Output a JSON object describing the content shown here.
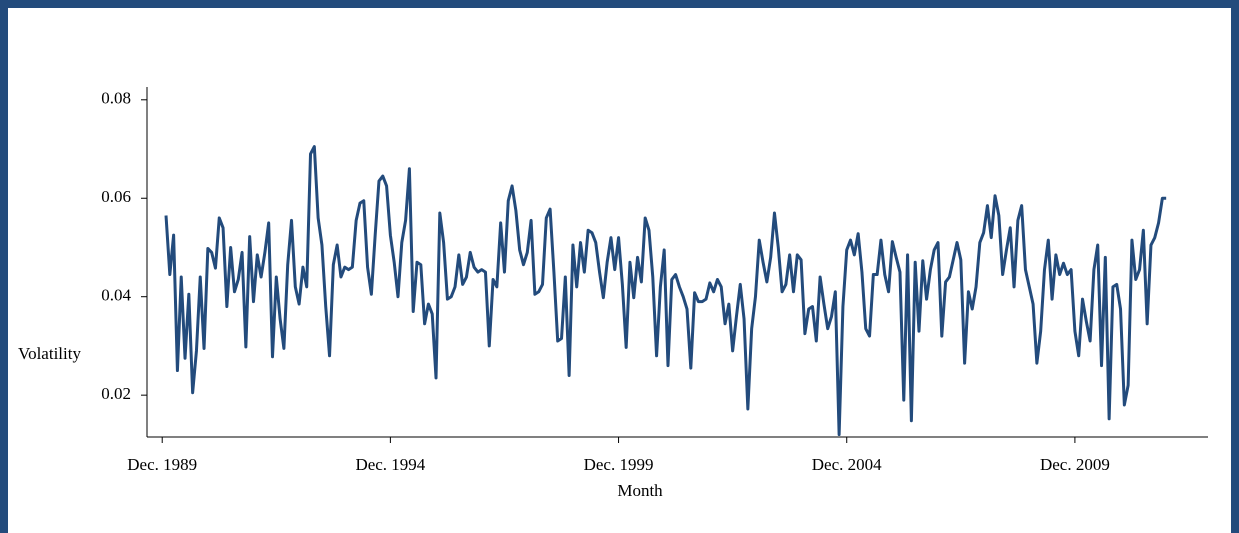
{
  "chart_data": {
    "type": "line",
    "x_label": "Month",
    "y_label": "Volatility",
    "xlim": [
      "1989-08",
      "2012-11"
    ],
    "ylim": [
      0.0115,
      0.0826
    ],
    "xticks": [
      {
        "value": "1989-12",
        "label": "Dec. 1989"
      },
      {
        "value": "1994-12",
        "label": "Dec. 1994"
      },
      {
        "value": "1999-12",
        "label": "Dec. 1999"
      },
      {
        "value": "2004-12",
        "label": "Dec. 2004"
      },
      {
        "value": "2009-12",
        "label": "Dec. 2009"
      }
    ],
    "yticks": [
      0.02,
      0.04,
      0.06,
      0.08
    ],
    "grid": false,
    "x": [
      "1990-01",
      "1990-02",
      "1990-03",
      "1990-04",
      "1990-05",
      "1990-06",
      "1990-07",
      "1990-08",
      "1990-09",
      "1990-10",
      "1990-11",
      "1990-12",
      "1991-01",
      "1991-02",
      "1991-03",
      "1991-04",
      "1991-05",
      "1991-06",
      "1991-07",
      "1991-08",
      "1991-09",
      "1991-10",
      "1991-11",
      "1991-12",
      "1992-01",
      "1992-02",
      "1992-03",
      "1992-04",
      "1992-05",
      "1992-06",
      "1992-07",
      "1992-08",
      "1992-09",
      "1992-10",
      "1992-11",
      "1992-12",
      "1993-01",
      "1993-02",
      "1993-03",
      "1993-04",
      "1993-05",
      "1993-06",
      "1993-07",
      "1993-08",
      "1993-09",
      "1993-10",
      "1993-11",
      "1993-12",
      "1994-01",
      "1994-02",
      "1994-03",
      "1994-04",
      "1994-05",
      "1994-06",
      "1994-07",
      "1994-08",
      "1994-09",
      "1994-10",
      "1994-11",
      "1994-12",
      "1995-01",
      "1995-02",
      "1995-03",
      "1995-04",
      "1995-05",
      "1995-06",
      "1995-07",
      "1995-08",
      "1995-09",
      "1995-10",
      "1995-11",
      "1995-12",
      "1996-01",
      "1996-02",
      "1996-03",
      "1996-04",
      "1996-05",
      "1996-06",
      "1996-07",
      "1996-08",
      "1996-09",
      "1996-10",
      "1996-11",
      "1996-12",
      "1997-01",
      "1997-02",
      "1997-03",
      "1997-04",
      "1997-05",
      "1997-06",
      "1997-07",
      "1997-08",
      "1997-09",
      "1997-10",
      "1997-11",
      "1997-12",
      "1998-01",
      "1998-02",
      "1998-03",
      "1998-04",
      "1998-05",
      "1998-06",
      "1998-07",
      "1998-08",
      "1998-09",
      "1998-10",
      "1998-11",
      "1998-12",
      "1999-01",
      "1999-02",
      "1999-03",
      "1999-04",
      "1999-05",
      "1999-06",
      "1999-07",
      "1999-08",
      "1999-09",
      "1999-10",
      "1999-11",
      "1999-12",
      "2000-01",
      "2000-02",
      "2000-03",
      "2000-04",
      "2000-05",
      "2000-06",
      "2000-07",
      "2000-08",
      "2000-09",
      "2000-10",
      "2000-11",
      "2000-12",
      "2001-01",
      "2001-02",
      "2001-03",
      "2001-04",
      "2001-05",
      "2001-06",
      "2001-07",
      "2001-08",
      "2001-09",
      "2001-10",
      "2001-11",
      "2001-12",
      "2002-01",
      "2002-02",
      "2002-03",
      "2002-04",
      "2002-05",
      "2002-06",
      "2002-07",
      "2002-08",
      "2002-09",
      "2002-10",
      "2002-11",
      "2002-12",
      "2003-01",
      "2003-02",
      "2003-03",
      "2003-04",
      "2003-05",
      "2003-06",
      "2003-07",
      "2003-08",
      "2003-09",
      "2003-10",
      "2003-11",
      "2003-12",
      "2004-01",
      "2004-02",
      "2004-03",
      "2004-04",
      "2004-05",
      "2004-06",
      "2004-07",
      "2004-08",
      "2004-09",
      "2004-10",
      "2004-11",
      "2004-12",
      "2005-01",
      "2005-02",
      "2005-03",
      "2005-04",
      "2005-05",
      "2005-06",
      "2005-07",
      "2005-08",
      "2005-09",
      "2005-10",
      "2005-11",
      "2005-12",
      "2006-01",
      "2006-02",
      "2006-03",
      "2006-04",
      "2006-05",
      "2006-06",
      "2006-07",
      "2006-08",
      "2006-09",
      "2006-10",
      "2006-11",
      "2006-12",
      "2007-01",
      "2007-02",
      "2007-03",
      "2007-04",
      "2007-05",
      "2007-06",
      "2007-07",
      "2007-08",
      "2007-09",
      "2007-10",
      "2007-11",
      "2007-12",
      "2008-01",
      "2008-02",
      "2008-03",
      "2008-04",
      "2008-05",
      "2008-06",
      "2008-07",
      "2008-08",
      "2008-09",
      "2008-10",
      "2008-11",
      "2008-12",
      "2009-01",
      "2009-02",
      "2009-03",
      "2009-04",
      "2009-05",
      "2009-06",
      "2009-07",
      "2009-08",
      "2009-09",
      "2009-10",
      "2009-11",
      "2009-12",
      "2010-01",
      "2010-02",
      "2010-03",
      "2010-04",
      "2010-05",
      "2010-06",
      "2010-07",
      "2010-08",
      "2010-09",
      "2010-10",
      "2010-11",
      "2010-12",
      "2011-01",
      "2011-02",
      "2011-03",
      "2011-04",
      "2011-05",
      "2011-06",
      "2011-07",
      "2011-08",
      "2011-09",
      "2011-10",
      "2011-11",
      "2011-12"
    ],
    "series": [
      {
        "color": "#234b7c",
        "values": [
          0.0565,
          0.0445,
          0.0525,
          0.025,
          0.044,
          0.0275,
          0.0405,
          0.0205,
          0.029,
          0.044,
          0.0295,
          0.0498,
          0.049,
          0.0458,
          0.056,
          0.054,
          0.038,
          0.05,
          0.041,
          0.0435,
          0.049,
          0.0298,
          0.0522,
          0.039,
          0.0485,
          0.044,
          0.049,
          0.055,
          0.0278,
          0.044,
          0.0355,
          0.0295,
          0.0465,
          0.0555,
          0.042,
          0.0385,
          0.046,
          0.042,
          0.069,
          0.0705,
          0.056,
          0.0505,
          0.038,
          0.028,
          0.0465,
          0.0505,
          0.044,
          0.046,
          0.0455,
          0.046,
          0.0555,
          0.059,
          0.0595,
          0.046,
          0.0405,
          0.0525,
          0.0635,
          0.0645,
          0.0625,
          0.0525,
          0.047,
          0.04,
          0.051,
          0.0555,
          0.066,
          0.037,
          0.047,
          0.0465,
          0.0345,
          0.0385,
          0.0365,
          0.0235,
          0.057,
          0.051,
          0.0395,
          0.04,
          0.042,
          0.0485,
          0.0425,
          0.044,
          0.049,
          0.046,
          0.045,
          0.0455,
          0.045,
          0.03,
          0.0435,
          0.042,
          0.055,
          0.045,
          0.0595,
          0.0625,
          0.0575,
          0.0495,
          0.0465,
          0.049,
          0.0555,
          0.0405,
          0.041,
          0.0425,
          0.056,
          0.0578,
          0.045,
          0.031,
          0.0315,
          0.044,
          0.024,
          0.0505,
          0.042,
          0.051,
          0.045,
          0.0535,
          0.053,
          0.051,
          0.045,
          0.0398,
          0.047,
          0.052,
          0.0455,
          0.052,
          0.0425,
          0.0297,
          0.047,
          0.0398,
          0.048,
          0.043,
          0.056,
          0.0535,
          0.044,
          0.028,
          0.042,
          0.0495,
          0.026,
          0.0435,
          0.0445,
          0.042,
          0.04,
          0.0375,
          0.0255,
          0.0408,
          0.039,
          0.039,
          0.0395,
          0.0428,
          0.041,
          0.0435,
          0.042,
          0.0345,
          0.0385,
          0.029,
          0.036,
          0.0425,
          0.0355,
          0.0172,
          0.0335,
          0.04,
          0.0515,
          0.047,
          0.043,
          0.048,
          0.057,
          0.05,
          0.041,
          0.0425,
          0.0485,
          0.041,
          0.0485,
          0.0475,
          0.0325,
          0.0375,
          0.038,
          0.031,
          0.044,
          0.0385,
          0.0335,
          0.036,
          0.041,
          0.012,
          0.038,
          0.0495,
          0.0515,
          0.0485,
          0.0528,
          0.045,
          0.0335,
          0.032,
          0.0445,
          0.0445,
          0.0515,
          0.0445,
          0.041,
          0.0512,
          0.048,
          0.045,
          0.019,
          0.0485,
          0.0148,
          0.047,
          0.033,
          0.0473,
          0.0395,
          0.0455,
          0.0495,
          0.051,
          0.032,
          0.043,
          0.044,
          0.0475,
          0.051,
          0.0475,
          0.0265,
          0.041,
          0.0375,
          0.042,
          0.051,
          0.053,
          0.0585,
          0.052,
          0.0605,
          0.0565,
          0.0445,
          0.0495,
          0.054,
          0.042,
          0.0555,
          0.0585,
          0.0455,
          0.042,
          0.0385,
          0.0265,
          0.033,
          0.0455,
          0.0515,
          0.0395,
          0.0485,
          0.0445,
          0.0468,
          0.0445,
          0.0455,
          0.033,
          0.028,
          0.0395,
          0.035,
          0.031,
          0.0455,
          0.0505,
          0.026,
          0.048,
          0.0152,
          0.042,
          0.0425,
          0.0375,
          0.018,
          0.022,
          0.0515,
          0.0435,
          0.0455,
          0.0535,
          0.0345,
          0.0505,
          0.052,
          0.055,
          0.06,
          0.06
        ]
      }
    ]
  }
}
